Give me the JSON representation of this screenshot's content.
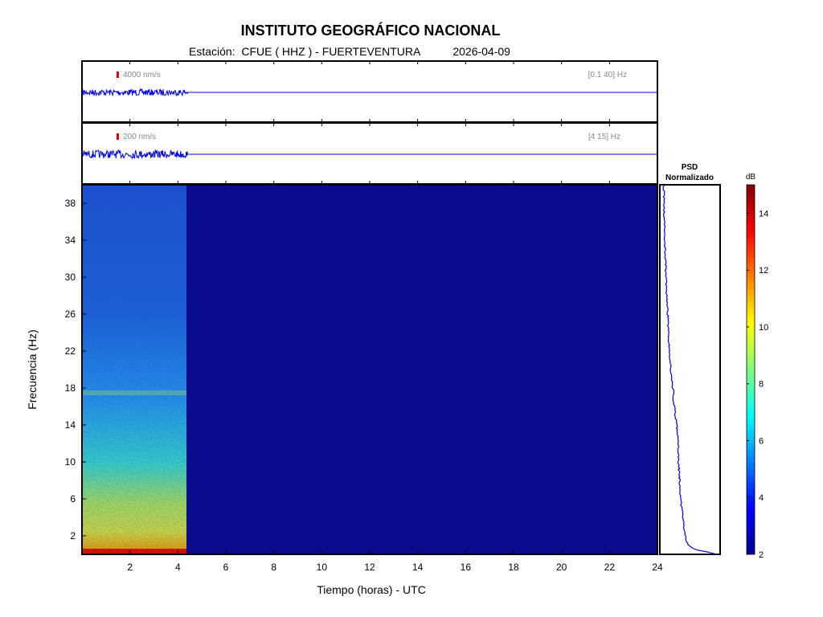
{
  "header": {
    "title": "INSTITUTO GEOGRÁFICO NACIONAL",
    "station_label": "Estación:",
    "station": "CFUE ( HHZ ) - FUERTEVENTURA",
    "date": "2026-04-09"
  },
  "traces": [
    {
      "scale": "4000 nm/s",
      "band": "[0.1 40] Hz"
    },
    {
      "scale": "200 nm/s",
      "band": "[4 15] Hz"
    }
  ],
  "psd": {
    "title_line1": "PSD",
    "title_line2": "Normalizado"
  },
  "colorbar": {
    "unit": "dB",
    "ticks": [
      "2",
      "4",
      "6",
      "8",
      "10",
      "12",
      "14"
    ]
  },
  "colors": {
    "background_blue": "#0a0a8c",
    "trace": "#0000dd",
    "scale_marker": "#dd0000"
  },
  "chart_data": {
    "type": "heatmap",
    "xlabel": "Tiempo (horas) - UTC",
    "ylabel": "Frecuencia  (Hz)",
    "x_ticks": [
      "2",
      "4",
      "6",
      "8",
      "10",
      "12",
      "14",
      "16",
      "18",
      "20",
      "22",
      "24"
    ],
    "y_ticks": [
      "2",
      "6",
      "10",
      "14",
      "18",
      "22",
      "26",
      "30",
      "34",
      "38"
    ],
    "xlim": [
      0,
      24
    ],
    "ylim": [
      0,
      40
    ],
    "data_end_hour": 4.4,
    "color_range": [
      2,
      15
    ],
    "psd_normalized_curve": {
      "frequency_hz": [
        0,
        0.5,
        1,
        2,
        4,
        6,
        8,
        10,
        12,
        14,
        16,
        17,
        17.5,
        18,
        20,
        22,
        24,
        26,
        28,
        30,
        32,
        34,
        36,
        38,
        40
      ],
      "level_0_1": [
        0.95,
        0.6,
        0.45,
        0.42,
        0.37,
        0.34,
        0.32,
        0.3,
        0.29,
        0.27,
        0.23,
        0.2,
        0.23,
        0.2,
        0.17,
        0.15,
        0.13,
        0.12,
        0.1,
        0.09,
        0.08,
        0.07,
        0.06,
        0.06,
        0.05
      ]
    }
  }
}
